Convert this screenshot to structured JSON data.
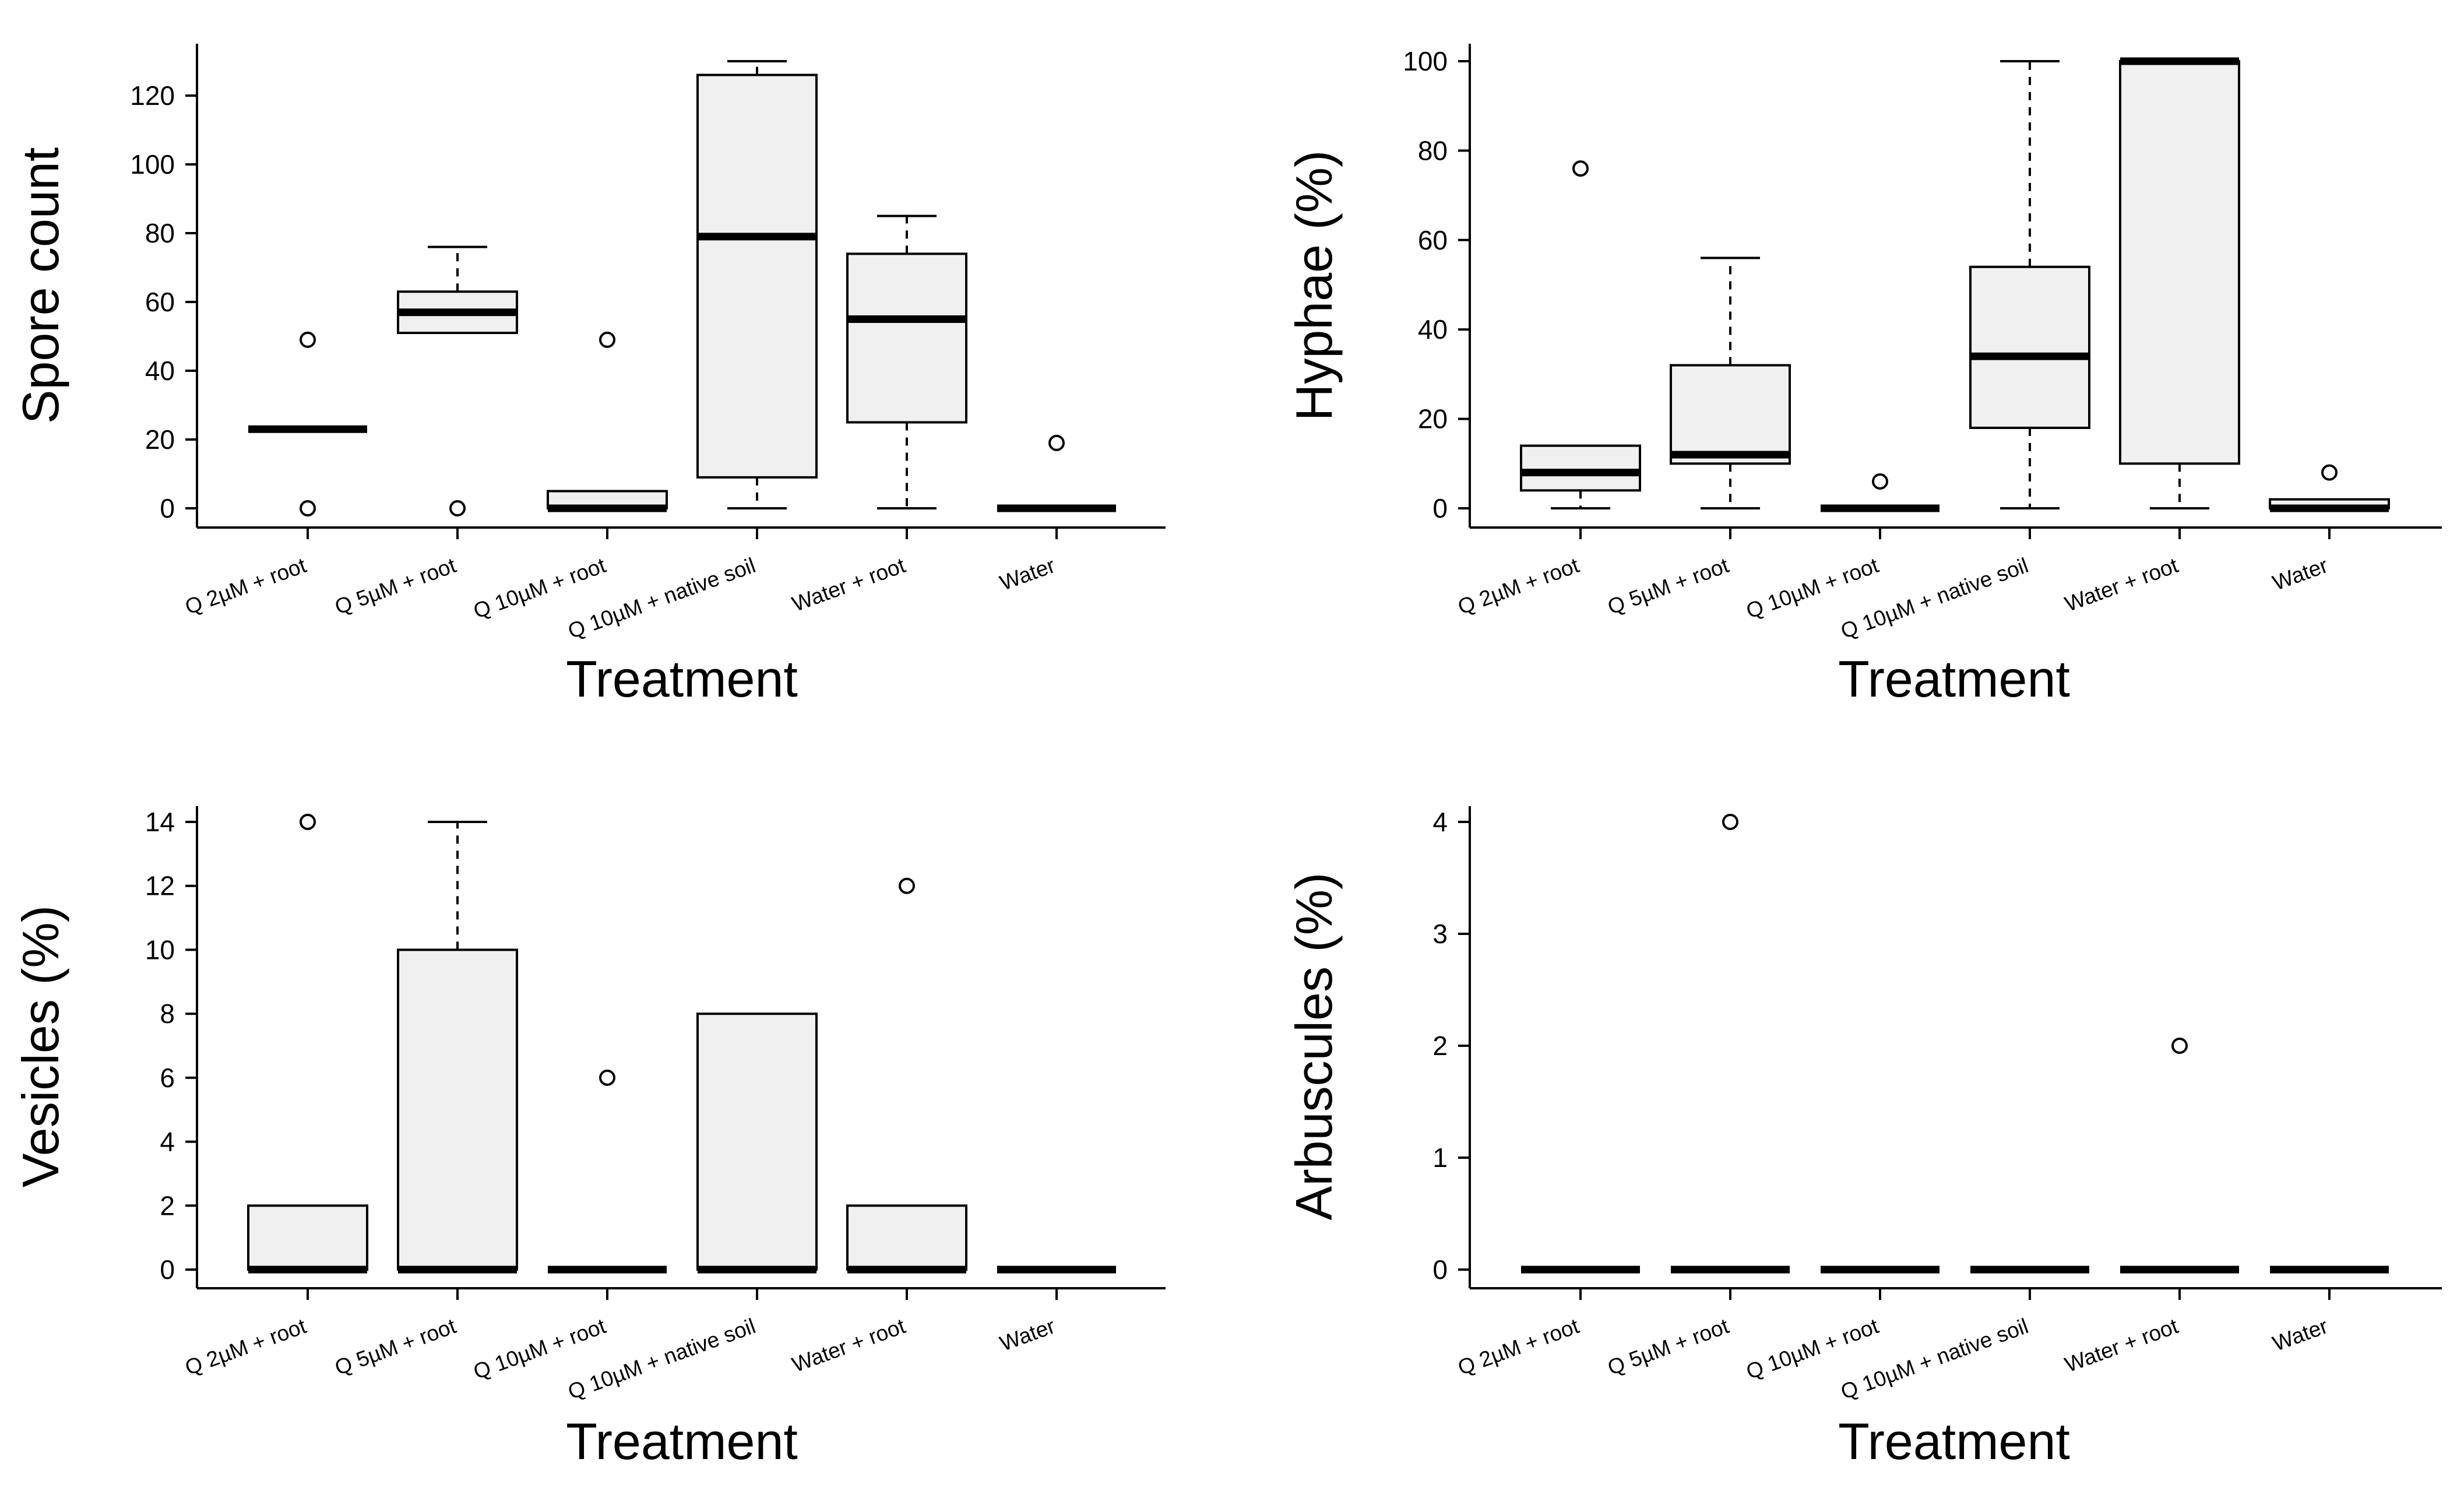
{
  "chart_data": [
    {
      "type": "box",
      "xlabel": "Treatment",
      "ylabel": "Spore count",
      "ylim": [
        0,
        130
      ],
      "yticks": [
        0,
        20,
        40,
        60,
        80,
        100,
        120
      ],
      "categories": [
        "Q 2µM + root",
        "Q 5µM + root",
        "Q 10µM + root",
        "Q 10µM + native soil",
        "Water + root",
        "Water"
      ],
      "boxes": [
        {
          "min": 23,
          "q1": 23,
          "median": 23,
          "q3": 23,
          "max": 23,
          "outliers": [
            0,
            49
          ]
        },
        {
          "min": 51,
          "q1": 51,
          "median": 57,
          "q3": 63,
          "max": 76,
          "outliers": [
            0
          ]
        },
        {
          "min": 0,
          "q1": 0,
          "median": 0,
          "q3": 5,
          "max": 5,
          "outliers": [
            49
          ]
        },
        {
          "min": 0,
          "q1": 9,
          "median": 79,
          "q3": 126,
          "max": 130,
          "outliers": []
        },
        {
          "min": 0,
          "q1": 25,
          "median": 55,
          "q3": 74,
          "max": 85,
          "outliers": []
        },
        {
          "min": 0,
          "q1": 0,
          "median": 0,
          "q3": 0,
          "max": 0,
          "outliers": [
            19
          ]
        }
      ]
    },
    {
      "type": "box",
      "xlabel": "Treatment",
      "ylabel": "Hyphae (%)",
      "ylim": [
        0,
        100
      ],
      "yticks": [
        0,
        20,
        40,
        60,
        80,
        100
      ],
      "categories": [
        "Q 2µM + root",
        "Q 5µM + root",
        "Q 10µM + root",
        "Q 10µM + native soil",
        "Water + root",
        "Water"
      ],
      "boxes": [
        {
          "min": 0,
          "q1": 4,
          "median": 8,
          "q3": 14,
          "max": 14,
          "outliers": [
            76
          ]
        },
        {
          "min": 0,
          "q1": 10,
          "median": 12,
          "q3": 32,
          "max": 56,
          "outliers": []
        },
        {
          "min": 0,
          "q1": 0,
          "median": 0,
          "q3": 0,
          "max": 0,
          "outliers": [
            6
          ]
        },
        {
          "min": 0,
          "q1": 18,
          "median": 34,
          "q3": 54,
          "max": 100,
          "outliers": []
        },
        {
          "min": 0,
          "q1": 10,
          "median": 100,
          "q3": 100,
          "max": 100,
          "outliers": []
        },
        {
          "min": 0,
          "q1": 0,
          "median": 0,
          "q3": 2,
          "max": 2,
          "outliers": [
            8
          ]
        }
      ]
    },
    {
      "type": "box",
      "xlabel": "Treatment",
      "ylabel": "Vesicles (%)",
      "ylim": [
        0,
        14
      ],
      "yticks": [
        0,
        2,
        4,
        6,
        8,
        10,
        12,
        14
      ],
      "categories": [
        "Q 2µM + root",
        "Q 5µM + root",
        "Q 10µM + root",
        "Q 10µM + native soil",
        "Water + root",
        "Water"
      ],
      "boxes": [
        {
          "min": 0,
          "q1": 0,
          "median": 0,
          "q3": 2,
          "max": 2,
          "outliers": [
            14
          ]
        },
        {
          "min": 0,
          "q1": 0,
          "median": 0,
          "q3": 10,
          "max": 14,
          "outliers": []
        },
        {
          "min": 0,
          "q1": 0,
          "median": 0,
          "q3": 0,
          "max": 0,
          "outliers": [
            6
          ]
        },
        {
          "min": 0,
          "q1": 0,
          "median": 0,
          "q3": 8,
          "max": 8,
          "outliers": []
        },
        {
          "min": 0,
          "q1": 0,
          "median": 0,
          "q3": 2,
          "max": 2,
          "outliers": [
            12
          ]
        },
        {
          "min": 0,
          "q1": 0,
          "median": 0,
          "q3": 0,
          "max": 0,
          "outliers": []
        }
      ]
    },
    {
      "type": "box",
      "xlabel": "Treatment",
      "ylabel": "Arbuscules (%)",
      "ylim": [
        0,
        4
      ],
      "yticks": [
        0,
        1,
        2,
        3,
        4
      ],
      "categories": [
        "Q 2µM + root",
        "Q 5µM + root",
        "Q 10µM + root",
        "Q 10µM + native soil",
        "Water + root",
        "Water"
      ],
      "boxes": [
        {
          "min": 0,
          "q1": 0,
          "median": 0,
          "q3": 0,
          "max": 0,
          "outliers": []
        },
        {
          "min": 0,
          "q1": 0,
          "median": 0,
          "q3": 0,
          "max": 0,
          "outliers": [
            4
          ]
        },
        {
          "min": 0,
          "q1": 0,
          "median": 0,
          "q3": 0,
          "max": 0,
          "outliers": []
        },
        {
          "min": 0,
          "q1": 0,
          "median": 0,
          "q3": 0,
          "max": 0,
          "outliers": []
        },
        {
          "min": 0,
          "q1": 0,
          "median": 0,
          "q3": 0,
          "max": 0,
          "outliers": [
            2
          ]
        },
        {
          "min": 0,
          "q1": 0,
          "median": 0,
          "q3": 0,
          "max": 0,
          "outliers": []
        }
      ]
    }
  ],
  "colors": {
    "box_fill": "#f0f0f0",
    "stroke": "#000000",
    "background": "#ffffff"
  }
}
